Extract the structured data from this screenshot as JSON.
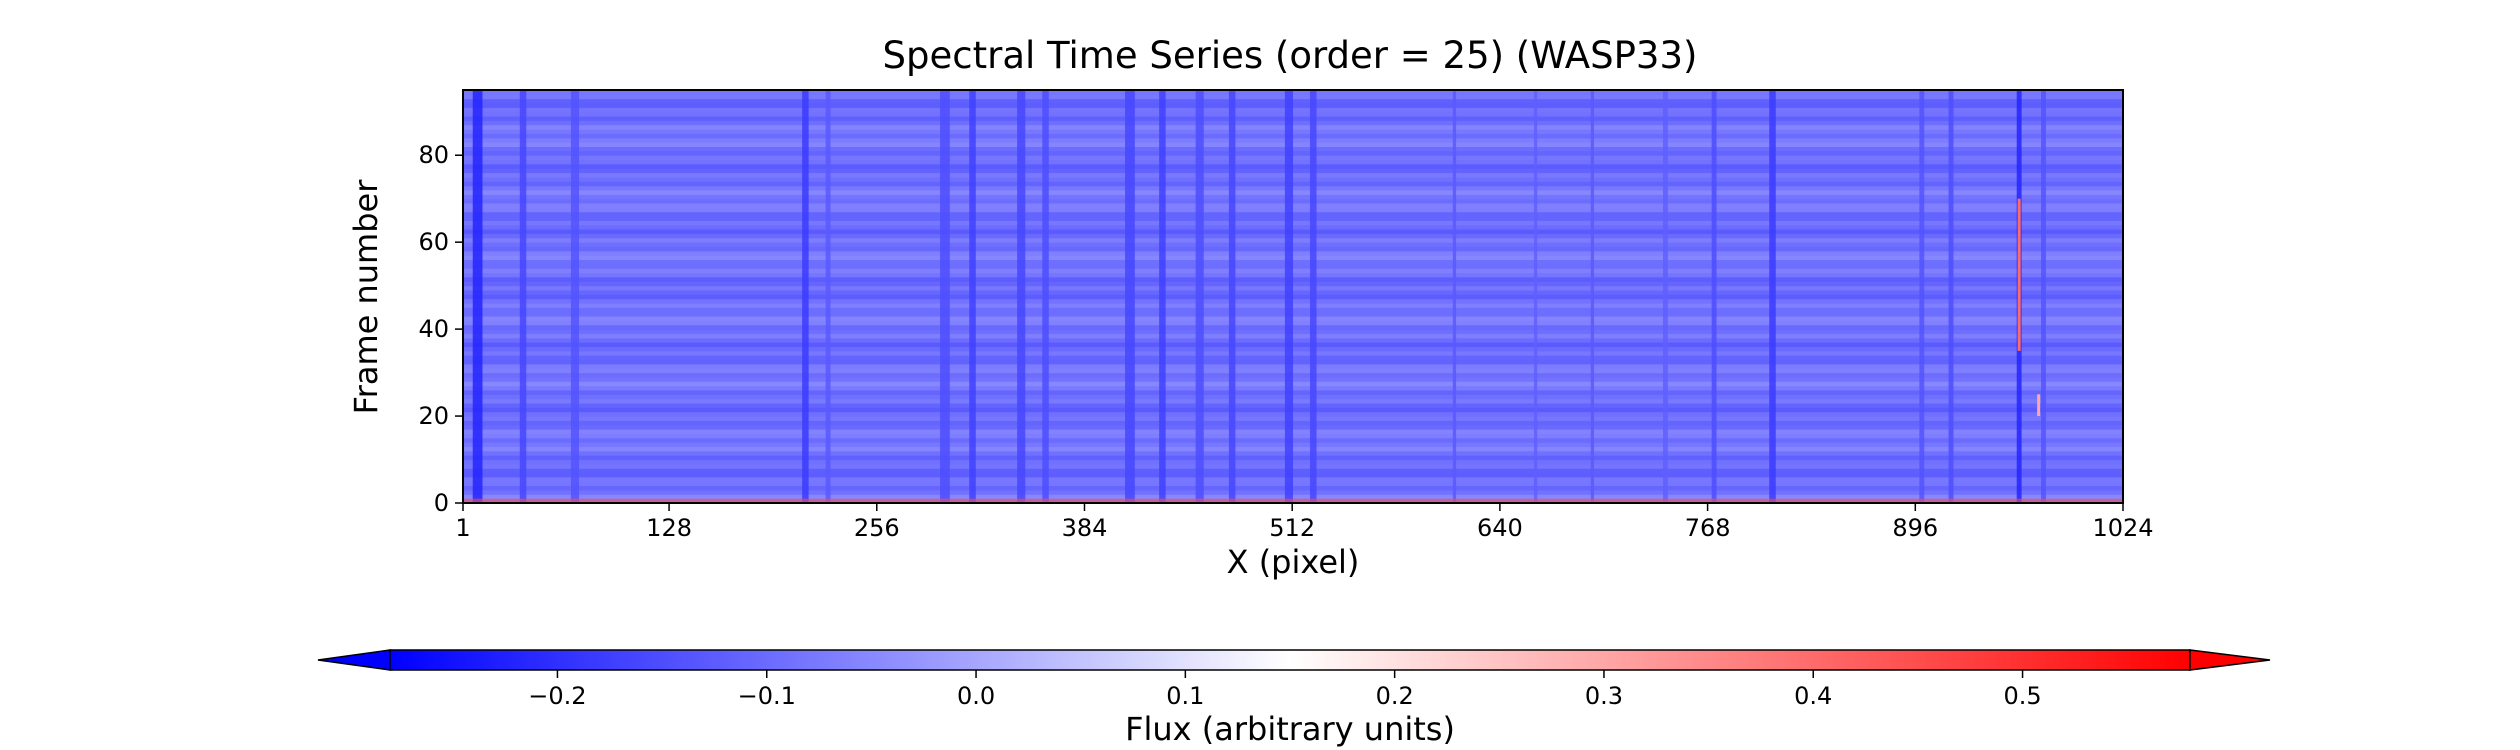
{
  "chart_data": {
    "type": "heatmap",
    "title": "Spectral Time Series (order = 25) (WASP33)",
    "xlabel": "X (pixel)",
    "ylabel": "Frame number",
    "x_range": [
      1,
      1024
    ],
    "y_range": [
      0,
      95
    ],
    "x_ticks": [
      1,
      128,
      256,
      384,
      512,
      640,
      768,
      896,
      1024
    ],
    "y_ticks": [
      0,
      20,
      40,
      60,
      80
    ],
    "colorbar": {
      "label": "Flux (arbitrary units)",
      "colormap": "bwr",
      "vmin": -0.28,
      "vmax": 0.58,
      "extend": "both",
      "ticks": [
        -0.2,
        -0.1,
        0.0,
        0.1,
        0.2,
        0.3,
        0.4,
        0.5
      ],
      "tick_labels": [
        "−0.2",
        "−0.1",
        "0.0",
        "0.1",
        "0.2",
        "0.3",
        "0.4",
        "0.5"
      ],
      "orientation": "horizontal",
      "position": "bottom"
    },
    "baseline_value": -0.09,
    "absorption_features": [
      {
        "x": 10,
        "width": 6,
        "value": -0.22
      },
      {
        "x": 38,
        "width": 4,
        "value": -0.16
      },
      {
        "x": 70,
        "width": 5,
        "value": -0.14
      },
      {
        "x": 212,
        "width": 4,
        "value": -0.18
      },
      {
        "x": 226,
        "width": 3,
        "value": -0.13
      },
      {
        "x": 298,
        "width": 6,
        "value": -0.15
      },
      {
        "x": 315,
        "width": 4,
        "value": -0.17
      },
      {
        "x": 345,
        "width": 5,
        "value": -0.16
      },
      {
        "x": 360,
        "width": 4,
        "value": -0.15
      },
      {
        "x": 412,
        "width": 6,
        "value": -0.16
      },
      {
        "x": 432,
        "width": 4,
        "value": -0.17
      },
      {
        "x": 455,
        "width": 5,
        "value": -0.15
      },
      {
        "x": 475,
        "width": 4,
        "value": -0.16
      },
      {
        "x": 510,
        "width": 5,
        "value": -0.17
      },
      {
        "x": 525,
        "width": 4,
        "value": -0.16
      },
      {
        "x": 612,
        "width": 2,
        "value": -0.13
      },
      {
        "x": 662,
        "width": 2,
        "value": -0.12
      },
      {
        "x": 697,
        "width": 2,
        "value": -0.13
      },
      {
        "x": 742,
        "width": 3,
        "value": -0.12
      },
      {
        "x": 772,
        "width": 3,
        "value": -0.15
      },
      {
        "x": 808,
        "width": 4,
        "value": -0.18
      },
      {
        "x": 900,
        "width": 3,
        "value": -0.14
      },
      {
        "x": 918,
        "width": 3,
        "value": -0.15
      },
      {
        "x": 960,
        "width": 3,
        "value": -0.22
      },
      {
        "x": 975,
        "width": 3,
        "value": -0.14
      }
    ],
    "emission_features": [
      {
        "x": 960,
        "frames": [
          35,
          70
        ],
        "value": 0.4
      },
      {
        "x": 972,
        "frames": [
          20,
          25
        ],
        "value": 0.3
      }
    ]
  }
}
